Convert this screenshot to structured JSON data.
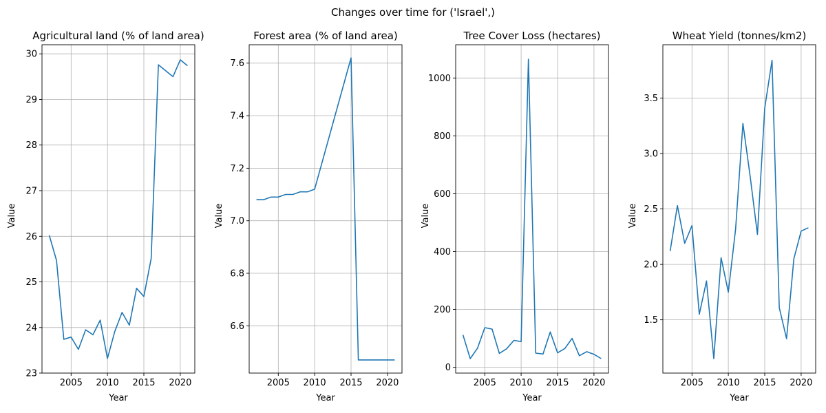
{
  "figure": {
    "suptitle": "Changes over time for ('Israel',)"
  },
  "chart_data": [
    {
      "type": "line",
      "title": "Agricultural land (% of land area)",
      "xlabel": "Year",
      "ylabel": "Value",
      "xlim": [
        2001,
        2022
      ],
      "ylim": [
        23.0,
        30.2
      ],
      "xticks": [
        2005,
        2010,
        2015,
        2020
      ],
      "yticks": [
        23,
        24,
        25,
        26,
        27,
        28,
        29,
        30
      ],
      "ytick_decimals": 0,
      "grid": true,
      "color": "#1f77b4",
      "x": [
        2002,
        2003,
        2004,
        2005,
        2006,
        2007,
        2008,
        2009,
        2010,
        2011,
        2012,
        2013,
        2014,
        2015,
        2016,
        2017,
        2018,
        2019,
        2020,
        2021
      ],
      "y": [
        26.02,
        25.47,
        23.74,
        23.79,
        23.52,
        23.95,
        23.84,
        24.16,
        23.32,
        23.91,
        24.33,
        24.05,
        24.86,
        24.68,
        25.51,
        29.76,
        29.63,
        29.5,
        29.87,
        29.74
      ]
    },
    {
      "type": "line",
      "title": "Forest area (% of land area)",
      "xlabel": "Year",
      "ylabel": "Value",
      "xlim": [
        2001,
        2022
      ],
      "ylim": [
        6.42,
        7.67
      ],
      "xticks": [
        2005,
        2010,
        2015,
        2020
      ],
      "yticks": [
        6.6,
        6.8,
        7.0,
        7.2,
        7.4,
        7.6
      ],
      "ytick_decimals": 1,
      "grid": true,
      "color": "#1f77b4",
      "x": [
        2002,
        2003,
        2004,
        2005,
        2006,
        2007,
        2008,
        2009,
        2010,
        2015,
        2016,
        2017,
        2018,
        2019,
        2020,
        2021
      ],
      "y": [
        7.08,
        7.08,
        7.09,
        7.09,
        7.1,
        7.1,
        7.11,
        7.11,
        7.12,
        7.62,
        6.47,
        6.47,
        6.47,
        6.47,
        6.47,
        6.47
      ]
    },
    {
      "type": "line",
      "title": "Tree Cover Loss (hectares)",
      "xlabel": "Year",
      "ylabel": "Value",
      "xlim": [
        2001,
        2022
      ],
      "ylim": [
        -20,
        1115
      ],
      "xticks": [
        2005,
        2010,
        2015,
        2020
      ],
      "yticks": [
        0,
        200,
        400,
        600,
        800,
        1000
      ],
      "ytick_decimals": 0,
      "grid": true,
      "color": "#1f77b4",
      "x": [
        2002,
        2003,
        2004,
        2005,
        2006,
        2007,
        2008,
        2009,
        2010,
        2011,
        2012,
        2013,
        2014,
        2015,
        2016,
        2017,
        2018,
        2019,
        2020,
        2021
      ],
      "y": [
        112,
        30,
        66,
        137,
        132,
        48,
        64,
        93,
        89,
        1065,
        49,
        46,
        122,
        50,
        65,
        100,
        40,
        54,
        45,
        30
      ]
    },
    {
      "type": "line",
      "title": "Wheat Yield (tonnes/km2)",
      "xlabel": "Year",
      "ylabel": "Value",
      "xlim": [
        2001,
        2022
      ],
      "ylim": [
        1.02,
        3.98
      ],
      "xticks": [
        2005,
        2010,
        2015,
        2020
      ],
      "yticks": [
        1.5,
        2.0,
        2.5,
        3.0,
        3.5
      ],
      "ytick_decimals": 1,
      "grid": true,
      "color": "#1f77b4",
      "x": [
        2002,
        2003,
        2004,
        2005,
        2006,
        2007,
        2008,
        2009,
        2010,
        2011,
        2012,
        2013,
        2014,
        2015,
        2016,
        2017,
        2018,
        2019,
        2020,
        2021
      ],
      "y": [
        2.12,
        2.53,
        2.19,
        2.35,
        1.55,
        1.85,
        1.15,
        2.06,
        1.75,
        2.32,
        3.27,
        2.79,
        2.27,
        3.41,
        3.84,
        1.61,
        1.33,
        2.05,
        2.3,
        2.33
      ]
    }
  ]
}
